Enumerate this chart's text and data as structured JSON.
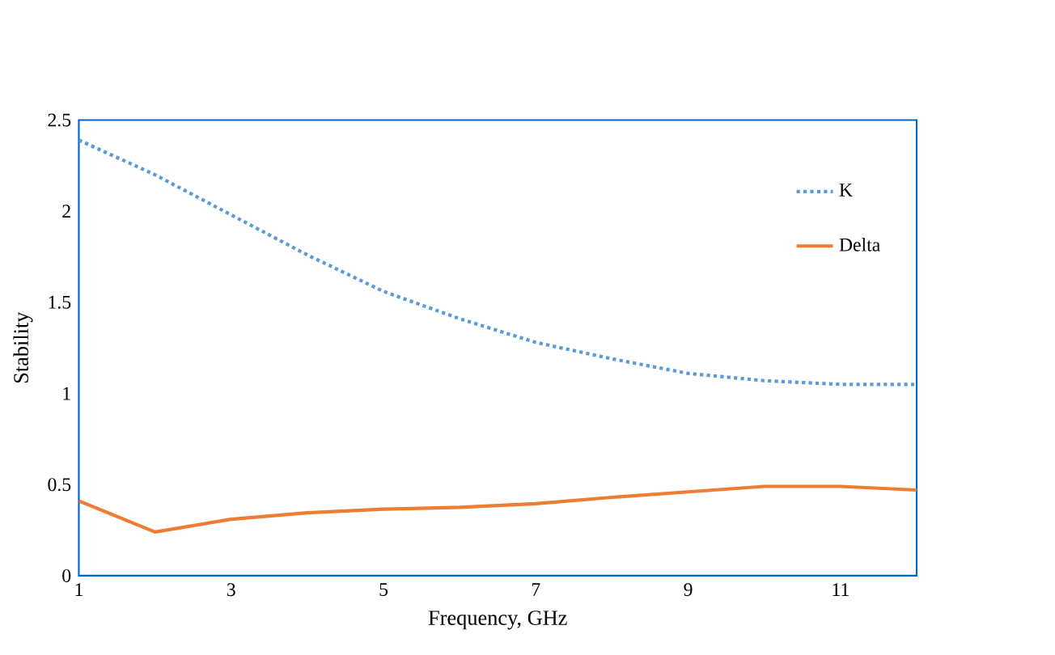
{
  "chart_data": {
    "type": "line",
    "xlabel": "Frequency, GHz",
    "ylabel": "Stability",
    "x": [
      1,
      2,
      3,
      4,
      5,
      6,
      7,
      8,
      9,
      10,
      11,
      12
    ],
    "series": [
      {
        "name": "K",
        "color": "#5b9bd5",
        "line_style": "dotted",
        "values": [
          2.39,
          2.2,
          1.98,
          1.76,
          1.56,
          1.41,
          1.28,
          1.19,
          1.11,
          1.07,
          1.05,
          1.05
        ]
      },
      {
        "name": "Delta",
        "color": "#ed7d31",
        "line_style": "solid",
        "values": [
          0.41,
          0.24,
          0.31,
          0.345,
          0.365,
          0.375,
          0.395,
          0.43,
          0.46,
          0.49,
          0.49,
          0.47
        ]
      }
    ],
    "xlim": [
      1,
      12
    ],
    "xticks": [
      1,
      3,
      5,
      7,
      9,
      11
    ],
    "ylim": [
      0,
      2.5
    ],
    "yticks": [
      0,
      0.5,
      1,
      1.5,
      2,
      2.5
    ],
    "grid": false,
    "legend": "top right",
    "marker": "none"
  }
}
